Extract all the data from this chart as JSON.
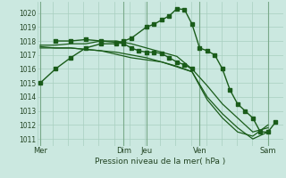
{
  "title": "",
  "xlabel": "Pression niveau de la mer( hPa )",
  "ylabel": "",
  "bg_color": "#cbe8e0",
  "grid_color": "#a8cfc0",
  "line_color": "#1a5c1a",
  "marker_color": "#1a5c1a",
  "ylim": [
    1010.5,
    1020.8
  ],
  "yticks": [
    1011,
    1012,
    1013,
    1014,
    1015,
    1016,
    1017,
    1018,
    1019,
    1020
  ],
  "day_labels": [
    "Mer",
    "Dim",
    "Jeu",
    "Ven",
    "Sam"
  ],
  "day_x": [
    0,
    5.5,
    7,
    10.5,
    15
  ],
  "xlim": [
    -0.2,
    16.0
  ],
  "num_xticks": 17,
  "series": [
    {
      "x": [
        0,
        1,
        2,
        3,
        4,
        5,
        5.5,
        6,
        7,
        7.5,
        8,
        8.5,
        9,
        9.5,
        10,
        10.5,
        11,
        11.5,
        12,
        12.5,
        13,
        13.5,
        14,
        14.5,
        15,
        15.5
      ],
      "y": [
        1015.0,
        1016.0,
        1016.8,
        1017.5,
        1017.8,
        1017.8,
        1018.0,
        1018.2,
        1019.0,
        1019.2,
        1019.5,
        1019.8,
        1020.3,
        1020.25,
        1019.2,
        1017.5,
        1017.3,
        1017.0,
        1016.0,
        1014.5,
        1013.5,
        1013.0,
        1012.5,
        1011.5,
        1011.5,
        1012.2
      ],
      "with_markers": true
    },
    {
      "x": [
        0,
        1,
        2,
        3,
        4,
        5,
        6,
        7,
        8,
        9,
        10,
        11,
        12,
        13,
        14,
        15
      ],
      "y": [
        1017.7,
        1017.7,
        1017.8,
        1017.8,
        1018.0,
        1018.0,
        1017.8,
        1017.5,
        1017.2,
        1016.9,
        1016.0,
        1014.8,
        1013.5,
        1012.5,
        1011.5,
        1011.8
      ],
      "with_markers": false
    },
    {
      "x": [
        0,
        1,
        2,
        3,
        4,
        5,
        6,
        7,
        8,
        9,
        10,
        11,
        12,
        13,
        14,
        15
      ],
      "y": [
        1017.6,
        1017.5,
        1017.5,
        1017.4,
        1017.3,
        1017.2,
        1017.0,
        1016.8,
        1016.5,
        1016.2,
        1015.8,
        1014.0,
        1012.8,
        1011.8,
        1011.0,
        1011.5
      ],
      "with_markers": false
    },
    {
      "x": [
        0,
        2,
        4,
        6,
        8,
        10,
        11,
        12,
        13,
        14,
        15
      ],
      "y": [
        1017.5,
        1017.5,
        1017.3,
        1016.8,
        1016.5,
        1015.8,
        1013.8,
        1012.5,
        1011.5,
        1011.2,
        1012.0
      ],
      "with_markers": false
    },
    {
      "x": [
        1,
        2,
        3,
        4,
        5,
        5.5,
        6,
        6.5,
        7,
        7.5,
        8,
        8.5,
        9,
        9.5,
        10
      ],
      "y": [
        1018.0,
        1018.0,
        1018.1,
        1018.0,
        1017.9,
        1017.8,
        1017.5,
        1017.3,
        1017.2,
        1017.2,
        1017.1,
        1016.8,
        1016.5,
        1016.3,
        1016.0
      ],
      "with_markers": true
    }
  ]
}
